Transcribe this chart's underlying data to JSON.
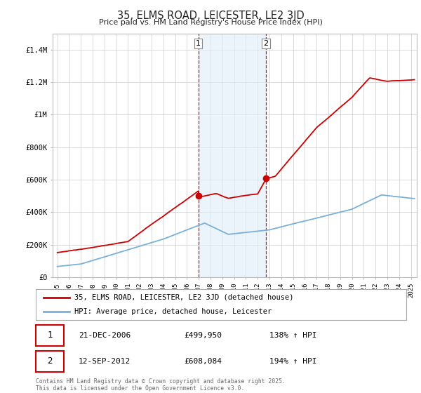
{
  "title": "35, ELMS ROAD, LEICESTER, LE2 3JD",
  "subtitle": "Price paid vs. HM Land Registry's House Price Index (HPI)",
  "ylim": [
    0,
    1500000
  ],
  "yticks": [
    0,
    200000,
    400000,
    600000,
    800000,
    1000000,
    1200000,
    1400000
  ],
  "ytick_labels": [
    "£0",
    "£200K",
    "£400K",
    "£600K",
    "£800K",
    "£1M",
    "£1.2M",
    "£1.4M"
  ],
  "background_color": "#ffffff",
  "grid_color": "#cccccc",
  "hpi_color": "#7bafd4",
  "sale_color": "#cc0000",
  "highlight_fill": "#ddeef8",
  "highlight_alpha": 0.6,
  "legend_items": [
    {
      "label": "35, ELMS ROAD, LEICESTER, LE2 3JD (detached house)",
      "color": "#cc0000"
    },
    {
      "label": "HPI: Average price, detached house, Leicester",
      "color": "#7bafd4"
    }
  ],
  "annotations": [
    {
      "num": "1",
      "date": "21-DEC-2006",
      "price": "£499,950",
      "hpi": "138% ↑ HPI"
    },
    {
      "num": "2",
      "date": "12-SEP-2012",
      "price": "£608,084",
      "hpi": "194% ↑ HPI"
    }
  ],
  "footer": "Contains HM Land Registry data © Crown copyright and database right 2025.\nThis data is licensed under the Open Government Licence v3.0.",
  "sale1_year": 2006.97,
  "sale1_price": 499950,
  "sale2_year": 2012.71,
  "sale2_price": 608084
}
